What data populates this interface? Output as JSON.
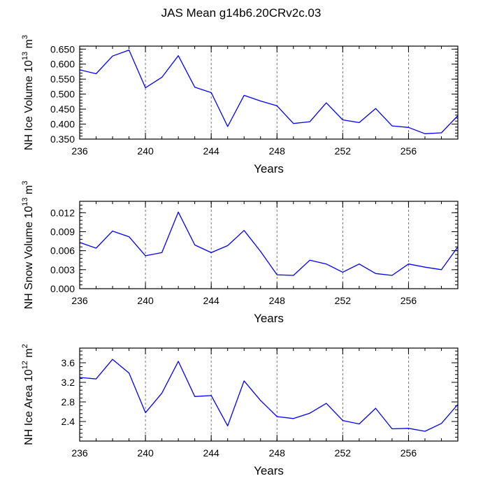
{
  "title": "JAS Mean g14b6.20CRv2c.03",
  "colors": {
    "line": "#0000ff",
    "axis": "#000000",
    "grid": "#666666"
  },
  "chart_data": [
    {
      "type": "line",
      "ylabel_prefix": "NH Ice Volume 10",
      "ylabel_exp": "13",
      "ylabel_unit": " m",
      "ylabel_unit_exp": "3",
      "xlabel": "Years",
      "xlim": [
        236,
        259
      ],
      "ylim": [
        0.35,
        0.66
      ],
      "xticks": [
        236,
        240,
        244,
        248,
        252,
        256
      ],
      "xtick_labels": [
        "236",
        "240",
        "244",
        "248",
        "252",
        "256"
      ],
      "yticks": [
        0.35,
        0.4,
        0.45,
        0.5,
        0.55,
        0.6,
        0.65
      ],
      "ytick_labels": [
        "0.350",
        "0.400",
        "0.450",
        "0.500",
        "0.550",
        "0.600",
        "0.650"
      ],
      "x": [
        236,
        237,
        238,
        239,
        240,
        241,
        242,
        243,
        244,
        245,
        246,
        247,
        248,
        249,
        250,
        251,
        252,
        253,
        254,
        255,
        256,
        257,
        258,
        259
      ],
      "values": [
        0.581,
        0.568,
        0.627,
        0.647,
        0.521,
        0.556,
        0.628,
        0.523,
        0.505,
        0.392,
        0.496,
        0.477,
        0.461,
        0.402,
        0.408,
        0.471,
        0.414,
        0.405,
        0.452,
        0.394,
        0.389,
        0.368,
        0.371,
        0.428
      ]
    },
    {
      "type": "line",
      "ylabel_prefix": "NH Snow Volume 10",
      "ylabel_exp": "13",
      "ylabel_unit": " m",
      "ylabel_unit_exp": "3",
      "xlabel": "Years",
      "xlim": [
        236,
        259
      ],
      "ylim": [
        0,
        0.0138
      ],
      "xticks": [
        236,
        240,
        244,
        248,
        252,
        256
      ],
      "xtick_labels": [
        "236",
        "240",
        "244",
        "248",
        "252",
        "256"
      ],
      "yticks": [
        0,
        0.003,
        0.006,
        0.009,
        0.012
      ],
      "ytick_labels": [
        "0.000",
        "0.003",
        "0.006",
        "0.009",
        "0.012"
      ],
      "x": [
        236,
        237,
        238,
        239,
        240,
        241,
        242,
        243,
        244,
        245,
        246,
        247,
        248,
        249,
        250,
        251,
        252,
        253,
        254,
        255,
        256,
        257,
        258,
        259
      ],
      "values": [
        0.0073,
        0.0064,
        0.0091,
        0.0082,
        0.0052,
        0.0057,
        0.0121,
        0.0069,
        0.0057,
        0.0068,
        0.0092,
        0.0059,
        0.0022,
        0.0021,
        0.0045,
        0.0039,
        0.0026,
        0.0039,
        0.0024,
        0.0021,
        0.0039,
        0.0034,
        0.003,
        0.0066
      ]
    },
    {
      "type": "line",
      "ylabel_prefix": "NH Ice Area 10",
      "ylabel_exp": "12",
      "ylabel_unit": " m",
      "ylabel_unit_exp": "2",
      "xlabel": "Years",
      "xlim": [
        236,
        259
      ],
      "ylim": [
        2.0,
        3.9
      ],
      "xticks": [
        236,
        240,
        244,
        248,
        252,
        256
      ],
      "xtick_labels": [
        "236",
        "240",
        "244",
        "248",
        "252",
        "256"
      ],
      "yticks": [
        2.4,
        2.8,
        3.2,
        3.6
      ],
      "ytick_labels": [
        "2.4",
        "2.8",
        "3.2",
        "3.6"
      ],
      "x": [
        236,
        237,
        238,
        239,
        240,
        241,
        242,
        243,
        244,
        245,
        246,
        247,
        248,
        249,
        250,
        251,
        252,
        253,
        254,
        255,
        256,
        257,
        258,
        259
      ],
      "values": [
        3.3,
        3.27,
        3.67,
        3.39,
        2.58,
        2.98,
        3.63,
        2.91,
        2.93,
        2.31,
        3.23,
        2.83,
        2.5,
        2.46,
        2.57,
        2.77,
        2.42,
        2.35,
        2.67,
        2.25,
        2.26,
        2.2,
        2.36,
        2.75
      ]
    }
  ]
}
